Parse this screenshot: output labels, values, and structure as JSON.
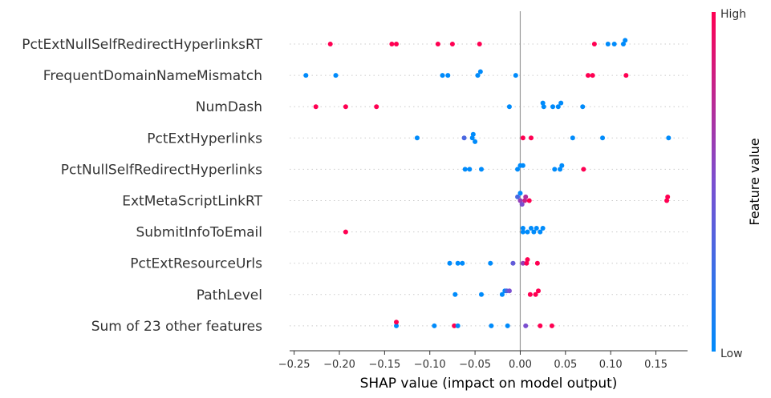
{
  "chart_data": {
    "type": "scatter",
    "subtype": "shap-beeswarm",
    "xlabel": "SHAP value (impact on model output)",
    "xlim": [
      -0.255,
      0.185
    ],
    "xticks": [
      -0.25,
      -0.2,
      -0.15,
      -0.1,
      -0.05,
      0.0,
      0.05,
      0.1,
      0.15
    ],
    "xtick_labels": [
      "−0.25",
      "−0.20",
      "−0.15",
      "−0.10",
      "−0.05",
      "0.00",
      "0.05",
      "0.10",
      "0.15"
    ],
    "colorbar": {
      "label": "Feature value",
      "high_label": "High",
      "low_label": "Low",
      "low_color": "#008bfb",
      "high_color": "#ff0052"
    },
    "features": [
      {
        "name": "PctExtNullSelfRedirectHyperlinksRT",
        "points": [
          {
            "x": -0.21,
            "v": 1
          },
          {
            "x": -0.142,
            "v": 1
          },
          {
            "x": -0.137,
            "v": 1
          },
          {
            "x": -0.091,
            "v": 1
          },
          {
            "x": -0.075,
            "v": 1
          },
          {
            "x": -0.045,
            "v": 1
          },
          {
            "x": 0.082,
            "v": 1
          },
          {
            "x": 0.097,
            "v": 0
          },
          {
            "x": 0.104,
            "v": 0
          },
          {
            "x": 0.114,
            "v": 0
          },
          {
            "x": 0.116,
            "v": 0
          }
        ]
      },
      {
        "name": "FrequentDomainNameMismatch",
        "points": [
          {
            "x": -0.237,
            "v": 0
          },
          {
            "x": -0.204,
            "v": 0
          },
          {
            "x": -0.086,
            "v": 0
          },
          {
            "x": -0.08,
            "v": 0
          },
          {
            "x": -0.047,
            "v": 0
          },
          {
            "x": -0.044,
            "v": 0
          },
          {
            "x": -0.005,
            "v": 0
          },
          {
            "x": 0.075,
            "v": 1
          },
          {
            "x": 0.08,
            "v": 1
          },
          {
            "x": 0.117,
            "v": 1
          }
        ]
      },
      {
        "name": "NumDash",
        "points": [
          {
            "x": -0.226,
            "v": 1
          },
          {
            "x": -0.193,
            "v": 1
          },
          {
            "x": -0.159,
            "v": 1
          },
          {
            "x": -0.012,
            "v": 0
          },
          {
            "x": 0.026,
            "v": 0
          },
          {
            "x": 0.025,
            "v": 0
          },
          {
            "x": 0.036,
            "v": 0
          },
          {
            "x": 0.042,
            "v": 0
          },
          {
            "x": 0.045,
            "v": 0
          },
          {
            "x": 0.069,
            "v": 0
          }
        ]
      },
      {
        "name": "PctExtHyperlinks",
        "points": [
          {
            "x": -0.114,
            "v": 0
          },
          {
            "x": -0.062,
            "v": 0.3
          },
          {
            "x": -0.053,
            "v": 0
          },
          {
            "x": -0.052,
            "v": 0
          },
          {
            "x": -0.05,
            "v": 0
          },
          {
            "x": 0.003,
            "v": 1
          },
          {
            "x": 0.012,
            "v": 1
          },
          {
            "x": 0.058,
            "v": 0
          },
          {
            "x": 0.091,
            "v": 0
          },
          {
            "x": 0.164,
            "v": 0
          }
        ]
      },
      {
        "name": "PctNullSelfRedirectHyperlinks",
        "points": [
          {
            "x": -0.061,
            "v": 0
          },
          {
            "x": -0.056,
            "v": 0
          },
          {
            "x": -0.043,
            "v": 0
          },
          {
            "x": -0.003,
            "v": 0
          },
          {
            "x": 0.0,
            "v": 0
          },
          {
            "x": 0.003,
            "v": 0
          },
          {
            "x": 0.038,
            "v": 0
          },
          {
            "x": 0.044,
            "v": 0
          },
          {
            "x": 0.046,
            "v": 0
          },
          {
            "x": 0.07,
            "v": 1
          }
        ]
      },
      {
        "name": "ExtMetaScriptLinkRT",
        "points": [
          {
            "x": 0.0,
            "v": 0.6
          },
          {
            "x": 0.005,
            "v": 0.8
          },
          {
            "x": -0.003,
            "v": 0.3
          },
          {
            "x": 0.002,
            "v": 0.5
          },
          {
            "x": 0.006,
            "v": 0.7
          },
          {
            "x": 0.01,
            "v": 1
          },
          {
            "x": 0.0,
            "v": 0
          },
          {
            "x": 0.162,
            "v": 1
          },
          {
            "x": 0.163,
            "v": 1
          }
        ]
      },
      {
        "name": "SubmitInfoToEmail",
        "points": [
          {
            "x": -0.193,
            "v": 1
          },
          {
            "x": 0.003,
            "v": 0
          },
          {
            "x": 0.015,
            "v": 0
          },
          {
            "x": 0.003,
            "v": 0
          },
          {
            "x": 0.008,
            "v": 0
          },
          {
            "x": 0.012,
            "v": 0
          },
          {
            "x": 0.018,
            "v": 0
          },
          {
            "x": 0.022,
            "v": 0
          },
          {
            "x": 0.025,
            "v": 0
          }
        ]
      },
      {
        "name": "PctExtResourceUrls",
        "points": [
          {
            "x": -0.078,
            "v": 0
          },
          {
            "x": -0.069,
            "v": 0
          },
          {
            "x": -0.064,
            "v": 0
          },
          {
            "x": -0.033,
            "v": 0
          },
          {
            "x": -0.008,
            "v": 0.4
          },
          {
            "x": 0.003,
            "v": 0.6
          },
          {
            "x": 0.007,
            "v": 1
          },
          {
            "x": 0.008,
            "v": 1
          },
          {
            "x": 0.019,
            "v": 1
          }
        ]
      },
      {
        "name": "PathLevel",
        "points": [
          {
            "x": -0.072,
            "v": 0
          },
          {
            "x": -0.043,
            "v": 0
          },
          {
            "x": -0.02,
            "v": 0
          },
          {
            "x": -0.017,
            "v": 0
          },
          {
            "x": -0.015,
            "v": 0.3
          },
          {
            "x": -0.012,
            "v": 0.5
          },
          {
            "x": 0.011,
            "v": 1
          },
          {
            "x": 0.017,
            "v": 1
          },
          {
            "x": 0.02,
            "v": 1
          }
        ]
      },
      {
        "name": "Sum of 23 other features",
        "points": [
          {
            "x": -0.137,
            "v": 0
          },
          {
            "x": -0.137,
            "v": 1
          },
          {
            "x": -0.095,
            "v": 0
          },
          {
            "x": -0.073,
            "v": 1
          },
          {
            "x": -0.069,
            "v": 0
          },
          {
            "x": -0.032,
            "v": 0
          },
          {
            "x": -0.014,
            "v": 0
          },
          {
            "x": 0.006,
            "v": 0.5
          },
          {
            "x": 0.022,
            "v": 1
          },
          {
            "x": 0.035,
            "v": 1
          }
        ]
      }
    ]
  }
}
